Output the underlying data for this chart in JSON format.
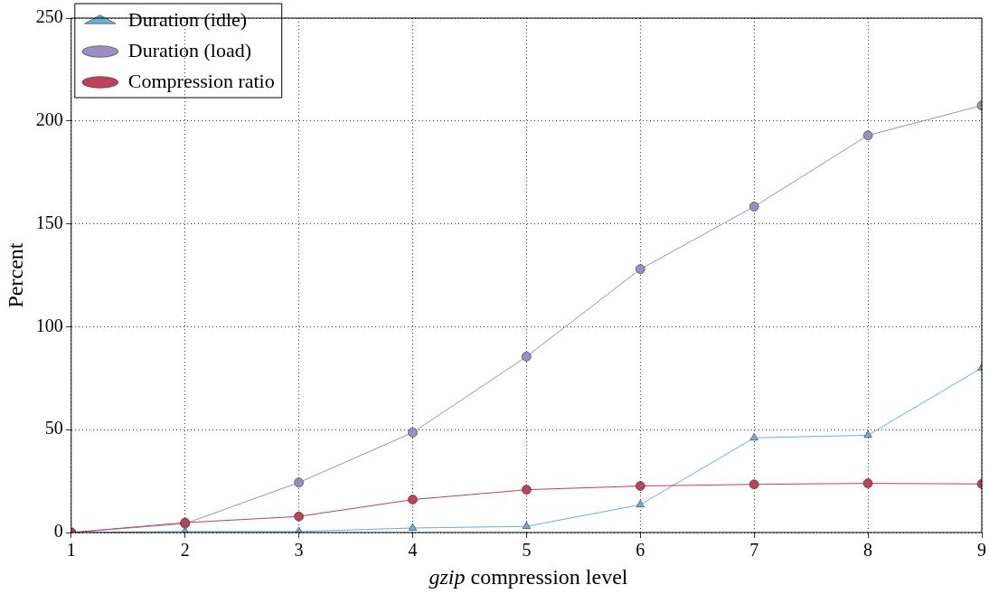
{
  "chart_data": {
    "type": "line",
    "xlabel": "gzip compression level",
    "ylabel": "Percent",
    "x": [
      1,
      2,
      3,
      4,
      5,
      6,
      7,
      8,
      9
    ],
    "series": [
      {
        "name": "Duration (idle)",
        "color": "#6aafd6",
        "marker": "triangle",
        "values": [
          0,
          0.5,
          0.5,
          2.2,
          3,
          13.5,
          46,
          47.3,
          80
        ]
      },
      {
        "name": "Duration (load)",
        "color": "#9b8ec4",
        "marker": "circle",
        "values": [
          0,
          4.3,
          24.3,
          48.6,
          85.5,
          128,
          158.4,
          193,
          207.5
        ]
      },
      {
        "name": "Compression ratio",
        "color": "#c0405a",
        "marker": "circle",
        "values": [
          0,
          4.8,
          7.8,
          16,
          20.8,
          22.6,
          23.4,
          23.9,
          23.6
        ]
      }
    ],
    "xlim": [
      1,
      9
    ],
    "xticks": [
      1,
      2,
      3,
      4,
      5,
      6,
      7,
      8,
      9
    ],
    "ylim": [
      0,
      250
    ],
    "yticks": [
      0,
      50,
      100,
      150,
      200,
      250
    ],
    "grid": true,
    "legend": "top left",
    "line_style": "solid"
  }
}
